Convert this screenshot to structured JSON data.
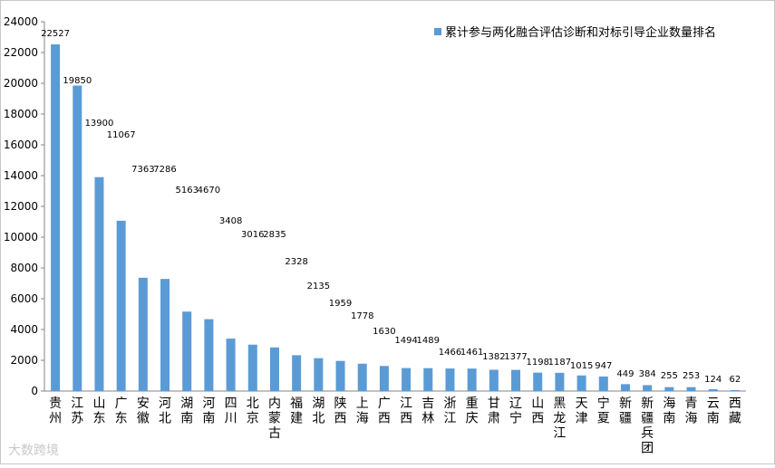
{
  "chart_data": {
    "type": "bar",
    "categories": [
      "贵州",
      "江苏",
      "山东",
      "广东",
      "安徽",
      "河北",
      "湖南",
      "河南",
      "四川",
      "北京",
      "内蒙古",
      "福建",
      "湖北",
      "陕西",
      "上海",
      "广西",
      "江西",
      "吉林",
      "浙江",
      "重庆",
      "甘肃",
      "辽宁",
      "山西",
      "黑龙江",
      "天津",
      "宁夏",
      "新疆",
      "新疆兵团",
      "海南",
      "青海",
      "云南",
      "西藏"
    ],
    "series": [
      {
        "name": "累计参与两化融合评估诊断和对标引导企业数量排名",
        "values": [
          22527,
          19850,
          13900,
          11067,
          7363,
          7286,
          5163,
          4670,
          3408,
          3016,
          2835,
          2328,
          2135,
          1959,
          1778,
          1630,
          1494,
          1489,
          1466,
          1461,
          1382,
          1377,
          1198,
          1187,
          1015,
          947,
          449,
          384,
          255,
          253,
          124,
          62
        ]
      }
    ],
    "data_labels": [
      "22527",
      "19850",
      "13900",
      "11067",
      "7363",
      "7286",
      "5163",
      "4670",
      "3408",
      "3016",
      "2835",
      "2328",
      "2135",
      "1959",
      "1778",
      "1630",
      "1494",
      "1489",
      "1466",
      "1461",
      "1382",
      "1377",
      "1198",
      "1187",
      "1015",
      "947",
      "449",
      "384",
      "255",
      "253",
      "124",
      "62"
    ],
    "yticks": [
      "0",
      "2000",
      "4000",
      "6000",
      "8000",
      "10000",
      "12000",
      "14000",
      "16000",
      "18000",
      "20000",
      "22000",
      "24000"
    ],
    "ylim": [
      0,
      24000
    ],
    "grid": false,
    "legend_position": "top-right",
    "bar_color": "#5b9bd5"
  },
  "watermark": "大数跨境"
}
